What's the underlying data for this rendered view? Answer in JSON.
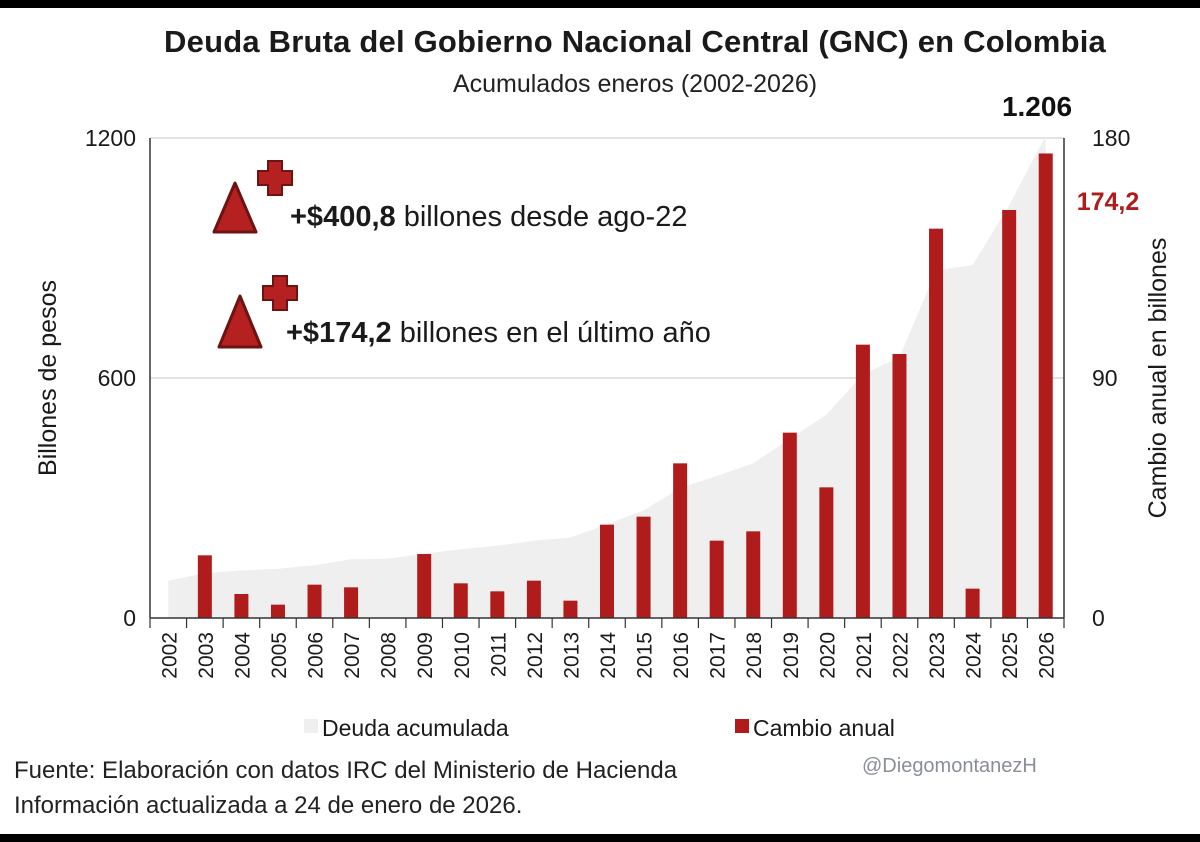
{
  "colors": {
    "area": "#efefef",
    "bar": "#b01c1c",
    "highlight": "#b01c1c",
    "text": "#1a1a1a",
    "grid": "#d9d9d9",
    "icon_fill": "#b52020",
    "icon_stroke": "#6e1212"
  },
  "header": {
    "title": "Deuda Bruta del Gobierno Nacional Central (GNC) en Colombia",
    "subtitle": "Acumulados eneros (2002-2026)"
  },
  "annotations": {
    "top_value": "1.206",
    "right_value": "174,2",
    "note1_bold": "+$400,8",
    "note1_text": " billones desde ago-22",
    "note2_bold": "+$174,2",
    "note2_text": " billones en el último año",
    "icons": [
      "triangle-up-icon",
      "plus-icon"
    ]
  },
  "legend": {
    "area_label": "Deuda acumulada",
    "bar_label": "Cambio anual"
  },
  "footer": {
    "source": "Fuente: Elaboración con datos IRC del Ministerio de Hacienda",
    "updated": "Información actualizada a 24 de enero de 2026.",
    "handle": "@DiegomontanezH"
  },
  "chart_data": {
    "type": "bar",
    "categories": [
      "2002",
      "2003",
      "2004",
      "2005",
      "2006",
      "2007",
      "2008",
      "2009",
      "2010",
      "2011",
      "2012",
      "2013",
      "2014",
      "2015",
      "2016",
      "2017",
      "2018",
      "2019",
      "2020",
      "2021",
      "2022",
      "2023",
      "2024",
      "2025",
      "2026"
    ],
    "series": [
      {
        "name": "Deuda acumulada",
        "type": "area",
        "axis": "left",
        "values": [
          93,
          112,
          119,
          123,
          132,
          147,
          148,
          161,
          172,
          181,
          193,
          201,
          234,
          269,
          325,
          355,
          387,
          448,
          508,
          609,
          652,
          869,
          882,
          1032,
          1206
        ]
      },
      {
        "name": "Cambio anual",
        "type": "bar",
        "axis": "right",
        "values": [
          0,
          23.5,
          9,
          5,
          12.5,
          11.5,
          0,
          24,
          13,
          10,
          14,
          6.5,
          35,
          38,
          58,
          29,
          32.5,
          69.5,
          49,
          102.5,
          99,
          146,
          11,
          153,
          174.2
        ]
      }
    ],
    "xlabel": "",
    "ylabel": "Billones de pesos",
    "ylim": [
      0,
      1200
    ],
    "yticks": [
      0,
      600,
      1200
    ],
    "y2label": "Cambio anual en billones",
    "y2lim": [
      0,
      180
    ],
    "y2ticks": [
      0,
      90,
      180
    ],
    "grid": true,
    "legend": "bottom"
  }
}
